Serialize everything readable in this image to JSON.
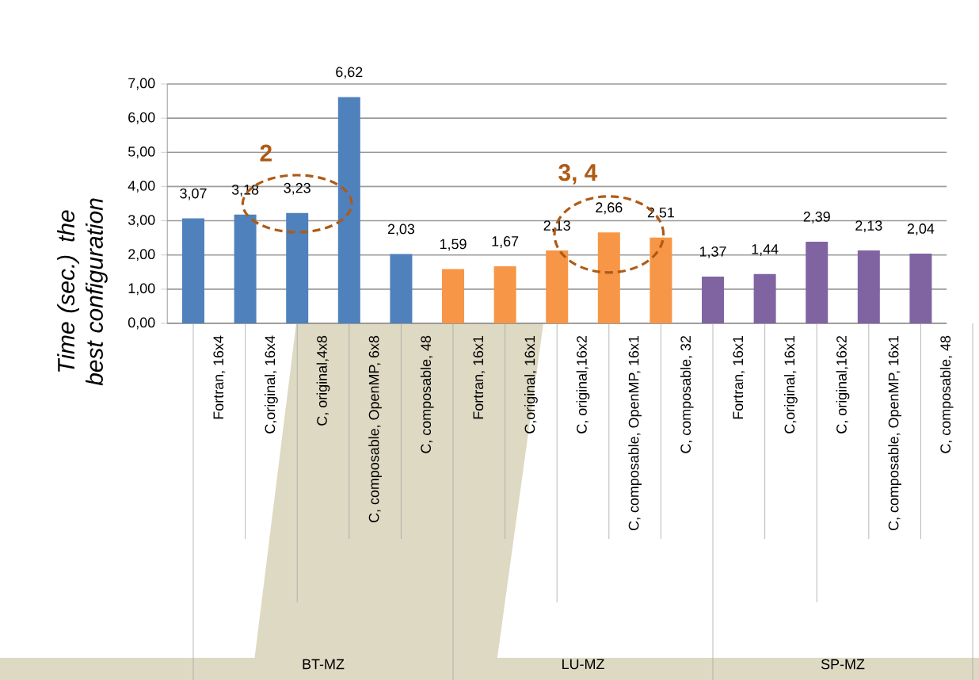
{
  "chart_data": {
    "type": "bar",
    "ylabel": "Time (sec.) the best configuration",
    "categories": [
      "Fortran, 16x4",
      "C,original, 16x4",
      "C, original,4x8",
      "C, composable, OpenMP, 6x8",
      "C, composable, 48",
      "Fortran, 16x1",
      "C,original, 16x1",
      "C, original,16x2",
      "C, composable, OpenMP, 16x1",
      "C, composable, 32",
      "Fortran, 16x1",
      "C,original, 16x1",
      "C, original,16x2",
      "C, composable, OpenMP, 16x1",
      "C, composable, 48"
    ],
    "values": [
      3.07,
      3.18,
      3.23,
      6.62,
      2.03,
      1.59,
      1.67,
      2.13,
      2.66,
      2.51,
      1.37,
      1.44,
      2.39,
      2.13,
      2.04
    ],
    "value_labels": [
      "3,07",
      "3,18",
      "3,23",
      "6,62",
      "2,03",
      "1,59",
      "1,67",
      "2,13",
      "2,66",
      "2,51",
      "1,37",
      "1,44",
      "2,39",
      "2,13",
      "2,04"
    ],
    "colors": [
      "#4f81bd",
      "#4f81bd",
      "#4f81bd",
      "#4f81bd",
      "#4f81bd",
      "#f79646",
      "#f79646",
      "#f79646",
      "#f79646",
      "#f79646",
      "#8064a2",
      "#8064a2",
      "#8064a2",
      "#8064a2",
      "#8064a2"
    ],
    "ylim": [
      0,
      7
    ],
    "yticks": [
      {
        "value": 0,
        "label": "0,00"
      },
      {
        "value": 1,
        "label": "1,00"
      },
      {
        "value": 2,
        "label": "2,00"
      },
      {
        "value": 3,
        "label": "3,00"
      },
      {
        "value": 4,
        "label": "4,00"
      },
      {
        "value": 5,
        "label": "5,00"
      },
      {
        "value": 6,
        "label": "6,00"
      },
      {
        "value": 7,
        "label": "7,00"
      }
    ],
    "grid": "y",
    "annotations": [
      "BT-MZ",
      "LU-MZ",
      "SP-MZ",
      "2",
      "3, 4"
    ]
  }
}
